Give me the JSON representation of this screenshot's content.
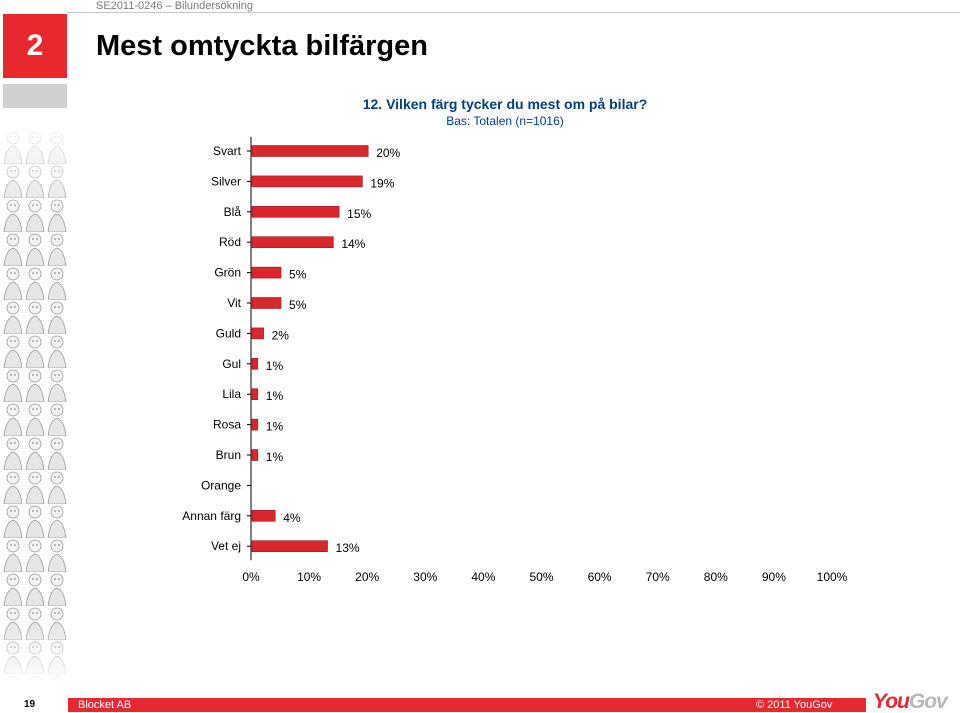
{
  "slide": {
    "number": "2",
    "reference": "SE2011-0246 – Bilundersökning",
    "title": "Mest omtyckta bilfärgen"
  },
  "colors": {
    "accent": "#e8282f",
    "bar": "#d9272e",
    "question_text": "#003f7f",
    "logo_gov": "#b8b8b8"
  },
  "chart_data": {
    "type": "bar",
    "orientation": "horizontal",
    "title": "12. Vilken färg tycker du mest  om på bilar?",
    "subtitle": "Bas: Totalen (n=1016)",
    "categories": [
      "Svart",
      "Silver",
      "Blå",
      "Röd",
      "Grön",
      "Vit",
      "Guld",
      "Gul",
      "Lila",
      "Rosa",
      "Brun",
      "Orange",
      "Annan färg",
      "Vet ej"
    ],
    "values": [
      20,
      19,
      15,
      14,
      5,
      5,
      2,
      1,
      1,
      1,
      1,
      0,
      4,
      13
    ],
    "data_labels": [
      "20%",
      "19%",
      "15%",
      "14%",
      "5%",
      "5%",
      "2%",
      "1%",
      "1%",
      "1%",
      "1%",
      "",
      "4%",
      "13%"
    ],
    "xlim": [
      0,
      100
    ],
    "x_ticks": [
      "0%",
      "10%",
      "20%",
      "30%",
      "40%",
      "50%",
      "60%",
      "70%",
      "80%",
      "90%",
      "100%"
    ],
    "grid": false,
    "legend": "none"
  },
  "footer": {
    "page": "19",
    "left": "Blocket AB",
    "right": "© 2011 YouGov",
    "logo_you": "You",
    "logo_gov": "Gov"
  }
}
